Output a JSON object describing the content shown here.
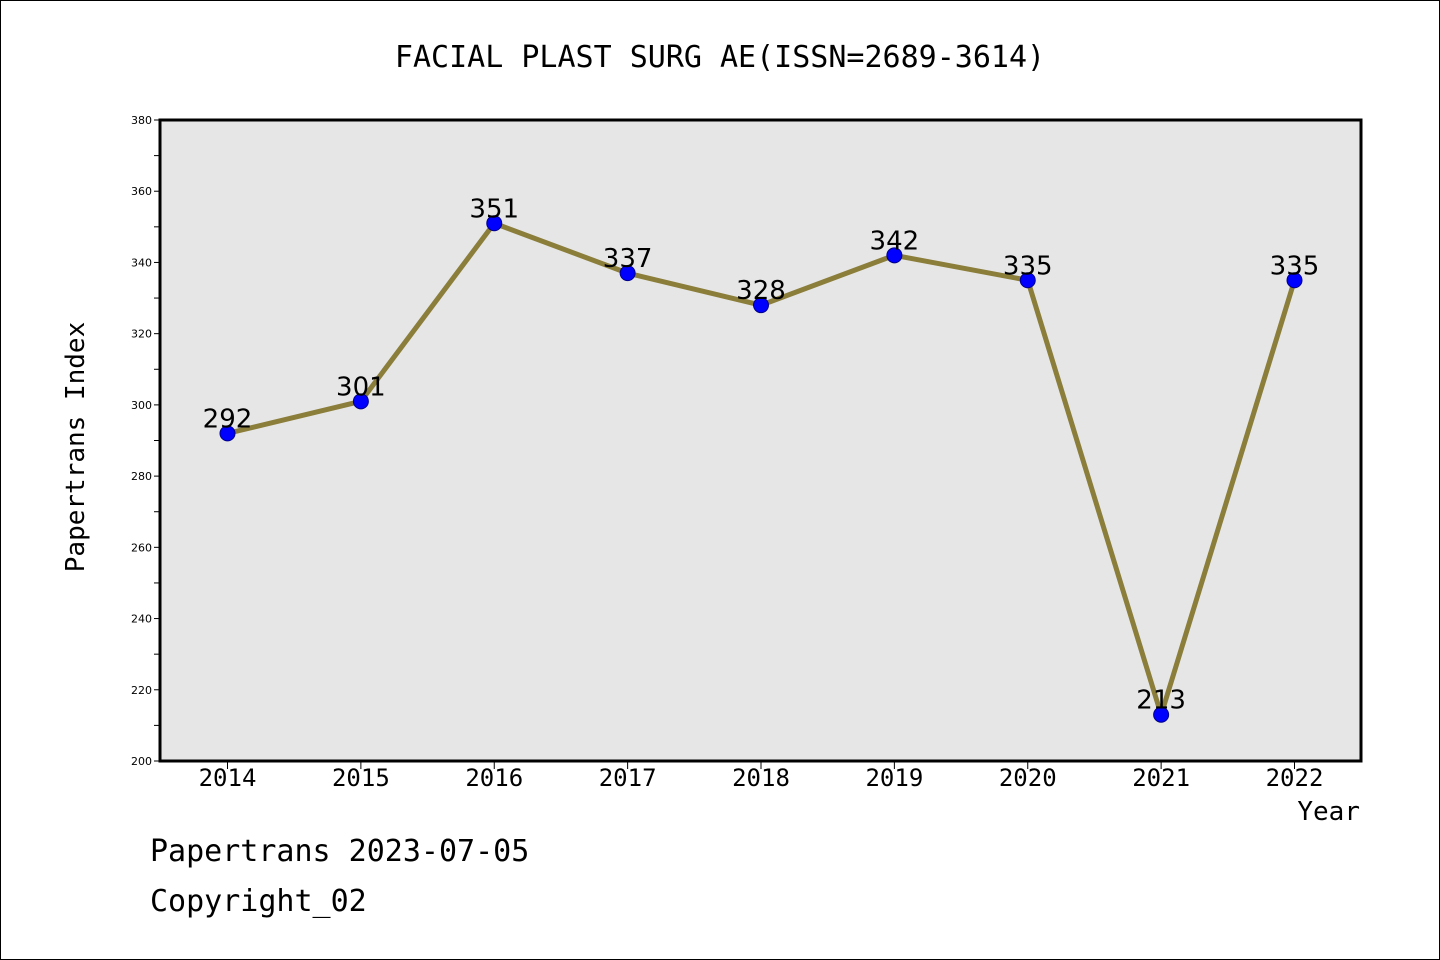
{
  "chart_data": {
    "type": "line",
    "title": "FACIAL PLAST SURG AE(ISSN=2689-3614)",
    "xlabel": "Year",
    "ylabel": "Papertrans Index",
    "categories": [
      "2014",
      "2015",
      "2016",
      "2017",
      "2018",
      "2019",
      "2020",
      "2021",
      "2022"
    ],
    "series": [
      {
        "values": [
          292,
          301,
          351,
          337,
          328,
          342,
          335,
          213,
          335
        ]
      }
    ],
    "data_labels": [
      "292",
      "301",
      "351",
      "337",
      "328",
      "342",
      "335",
      "213",
      "335"
    ],
    "ylim": [
      200,
      380
    ],
    "yticks": [
      200,
      220,
      240,
      260,
      280,
      300,
      320,
      340,
      360,
      380
    ],
    "grid": false,
    "colors": {
      "line": "#8b7d3a",
      "marker_fill": "#0000ff",
      "marker_edge": "#00008b",
      "plot_background": "#e6e6e6",
      "axes": "#000000"
    }
  },
  "footer": {
    "date_line": "Papertrans 2023-07-05",
    "copyright_line": "Copyright_02"
  }
}
